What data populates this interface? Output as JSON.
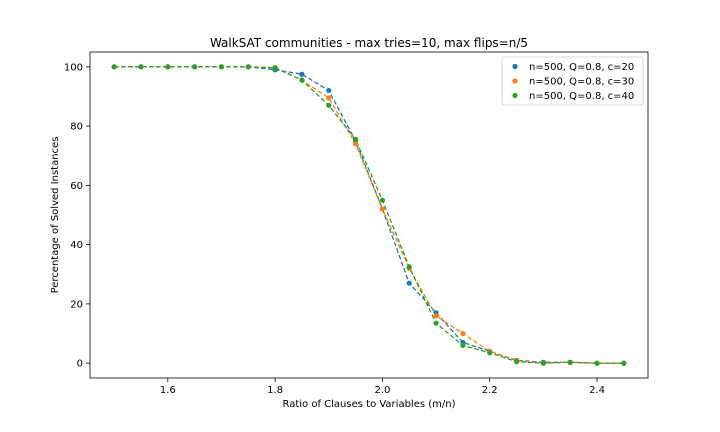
{
  "chart_data": {
    "type": "scatter",
    "title": "WalkSAT communities - max tries=10, max flips=n/5",
    "xlabel": "Ratio of Clauses to Variables (m/n)",
    "ylabel": "Percentage of Solved Instances",
    "xlim": [
      1.455,
      2.495
    ],
    "ylim": [
      -5,
      105
    ],
    "xticks": [
      1.6,
      1.8,
      2.0,
      2.2,
      2.4
    ],
    "xtick_labels": [
      "1.6",
      "1.8",
      "2.0",
      "2.2",
      "2.4"
    ],
    "yticks": [
      0,
      20,
      40,
      60,
      80,
      100
    ],
    "ytick_labels": [
      "0",
      "20",
      "40",
      "60",
      "80",
      "100"
    ],
    "grid": false,
    "legend_position": "top-right",
    "line_style": "dashed",
    "x": [
      1.5,
      1.55,
      1.6,
      1.65,
      1.7,
      1.75,
      1.8,
      1.85,
      1.9,
      1.95,
      2.0,
      2.05,
      2.1,
      2.15,
      2.2,
      2.25,
      2.3,
      2.35,
      2.4,
      2.45
    ],
    "series": [
      {
        "name": "n=500, Q=0.8, c=20",
        "color": "#1f77b4",
        "values": [
          100,
          100,
          100,
          100,
          100,
          100,
          99,
          97.5,
          92,
          75,
          52,
          27,
          17,
          7,
          4,
          1,
          0.3,
          0.3,
          0,
          0
        ]
      },
      {
        "name": "n=500, Q=0.8, c=30",
        "color": "#ff7f0e",
        "values": [
          100,
          100,
          100,
          100,
          100,
          100,
          99.7,
          95.5,
          89.5,
          74,
          52,
          32,
          16,
          10,
          4,
          0.8,
          0,
          0.3,
          0,
          0
        ]
      },
      {
        "name": "n=500, Q=0.8, c=40",
        "color": "#2ca02c",
        "values": [
          100,
          100,
          100,
          100,
          100,
          100,
          99.7,
          95.5,
          87,
          75.5,
          55,
          32.5,
          13.5,
          6,
          3.5,
          0.5,
          0,
          0.3,
          0,
          0
        ]
      }
    ]
  }
}
